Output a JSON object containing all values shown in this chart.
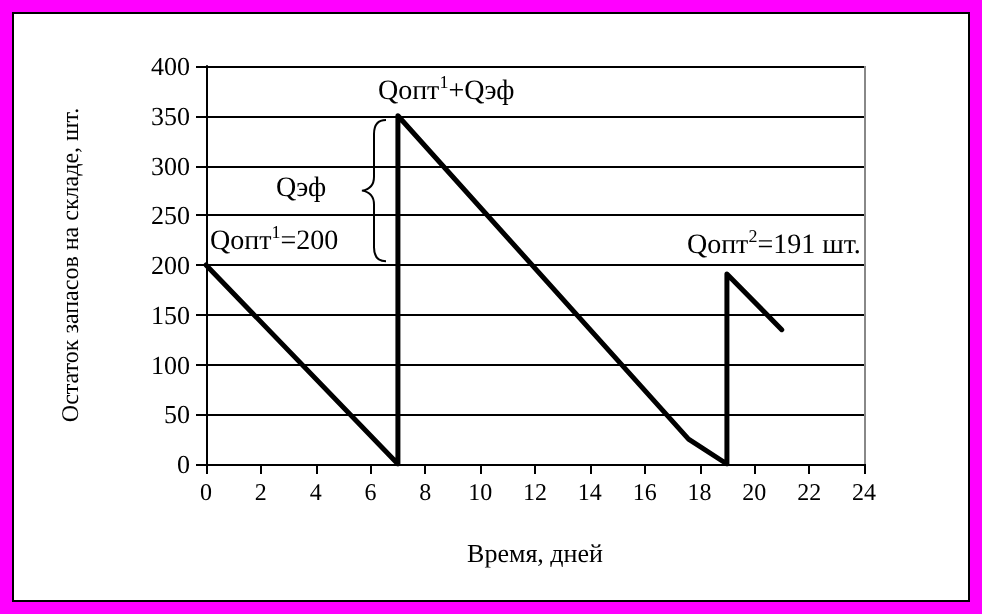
{
  "chart_data": {
    "type": "line",
    "xlabel": "Время, дней",
    "ylabel": "Остаток запасов на складе, шт.",
    "series": [
      {
        "color": "#000000",
        "x": [
          0,
          7,
          7,
          17.6,
          19,
          19,
          21
        ],
        "values": [
          200,
          0,
          350,
          25,
          0,
          191,
          135
        ]
      }
    ],
    "xlim": [
      0,
      24
    ],
    "xticks": [
      0,
      2,
      4,
      6,
      8,
      10,
      12,
      14,
      16,
      18,
      20,
      22,
      24
    ],
    "ylim": [
      0,
      400
    ],
    "yticks": [
      0,
      50,
      100,
      150,
      200,
      250,
      300,
      350,
      400
    ],
    "grid": "y",
    "marker": "none",
    "line_style": "solid",
    "annotations": [
      {
        "text": "Qопт$^{1}$=200",
        "x": 0,
        "y": 200
      },
      {
        "text": "Qопт$^{1}$+Qэф",
        "x": 7,
        "y": 350
      },
      {
        "text": "Qэф",
        "x": 7,
        "y": 275
      },
      {
        "text": "Qопт$^{2}$=191 шт.",
        "x": 19,
        "y": 191
      }
    ]
  }
}
